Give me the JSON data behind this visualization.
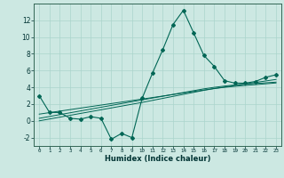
{
  "xlabel": "Humidex (Indice chaleur)",
  "background_color": "#cce8e2",
  "grid_color": "#aad4cc",
  "line_color": "#006655",
  "x_data": [
    0,
    1,
    2,
    3,
    4,
    5,
    6,
    7,
    8,
    9,
    10,
    11,
    12,
    13,
    14,
    15,
    16,
    17,
    18,
    19,
    20,
    21,
    22,
    23
  ],
  "y_main": [
    3,
    1,
    1,
    0.3,
    0.2,
    0.5,
    0.3,
    -2.2,
    -1.5,
    -2.0,
    2.7,
    5.7,
    8.5,
    11.5,
    13.2,
    10.5,
    7.8,
    6.5,
    4.8,
    4.5,
    4.5,
    4.7,
    5.2,
    5.5
  ],
  "y_linear1": [
    0.8,
    0.98,
    1.16,
    1.34,
    1.52,
    1.7,
    1.88,
    2.06,
    2.24,
    2.42,
    2.6,
    2.78,
    2.96,
    3.14,
    3.32,
    3.5,
    3.68,
    3.86,
    4.04,
    4.22,
    4.4,
    4.58,
    4.76,
    4.94
  ],
  "y_linear2": [
    0.3,
    0.52,
    0.74,
    0.96,
    1.18,
    1.4,
    1.62,
    1.84,
    2.06,
    2.28,
    2.5,
    2.72,
    2.94,
    3.16,
    3.38,
    3.6,
    3.82,
    4.0,
    4.15,
    4.28,
    4.38,
    4.46,
    4.54,
    4.62
  ],
  "y_linear3": [
    0.0,
    0.22,
    0.44,
    0.66,
    0.88,
    1.1,
    1.32,
    1.54,
    1.76,
    1.98,
    2.2,
    2.44,
    2.68,
    2.92,
    3.16,
    3.4,
    3.64,
    3.85,
    4.0,
    4.12,
    4.22,
    4.32,
    4.42,
    4.52
  ],
  "ylim": [
    -3,
    14
  ],
  "yticks": [
    -2,
    0,
    2,
    4,
    6,
    8,
    10,
    12
  ],
  "xticks": [
    0,
    1,
    2,
    3,
    4,
    5,
    6,
    7,
    8,
    9,
    10,
    11,
    12,
    13,
    14,
    15,
    16,
    17,
    18,
    19,
    20,
    21,
    22,
    23
  ],
  "xlim": [
    -0.5,
    23.5
  ]
}
